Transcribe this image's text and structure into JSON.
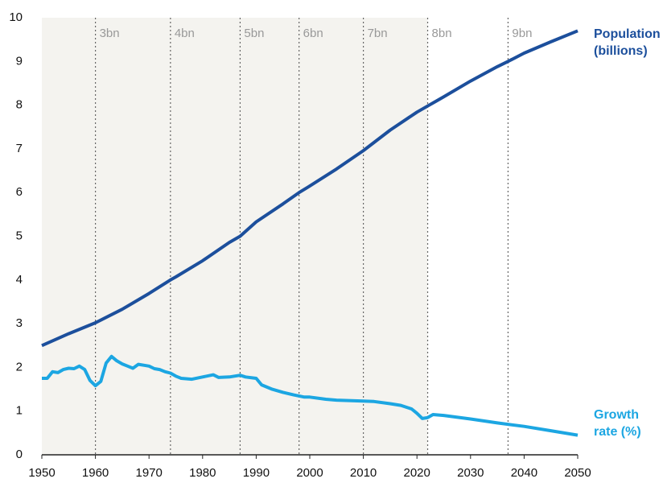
{
  "chart_data": {
    "type": "line",
    "xlim": [
      1950,
      2050
    ],
    "xticks": [
      1950,
      1960,
      1970,
      1980,
      1990,
      2000,
      2010,
      2020,
      2030,
      2040,
      2050
    ],
    "ylim": [
      0,
      10
    ],
    "yticks": [
      0,
      1,
      2,
      3,
      4,
      5,
      6,
      7,
      8,
      9,
      10
    ],
    "milestones": [
      {
        "x": 1960,
        "label": "3bn"
      },
      {
        "x": 1974,
        "label": "4bn"
      },
      {
        "x": 1987,
        "label": "5bn"
      },
      {
        "x": 1998,
        "label": "6bn"
      },
      {
        "x": 2010,
        "label": "7bn"
      },
      {
        "x": 2022,
        "label": "8bn"
      },
      {
        "x": 2037,
        "label": "9bn"
      }
    ],
    "series": [
      {
        "name": "Population (billions)",
        "color": "#1c4f9c",
        "x": [
          1950,
          1955,
          1960,
          1965,
          1970,
          1974,
          1975,
          1980,
          1985,
          1987,
          1990,
          1995,
          1998,
          2000,
          2005,
          2010,
          2015,
          2020,
          2022,
          2025,
          2030,
          2035,
          2037,
          2040,
          2045,
          2050
        ],
        "values": [
          2.5,
          2.77,
          3.02,
          3.33,
          3.69,
          4.0,
          4.07,
          4.44,
          4.86,
          5.0,
          5.33,
          5.74,
          6.0,
          6.15,
          6.54,
          6.96,
          7.43,
          7.84,
          7.98,
          8.19,
          8.55,
          8.88,
          9.0,
          9.19,
          9.45,
          9.7
        ]
      },
      {
        "name": "Growth rate (%)",
        "color": "#1ca6e2",
        "x": [
          1950,
          1951,
          1952,
          1953,
          1954,
          1955,
          1956,
          1957,
          1958,
          1959,
          1960,
          1961,
          1962,
          1963,
          1964,
          1965,
          1966,
          1967,
          1968,
          1969,
          1970,
          1971,
          1972,
          1973,
          1974,
          1975,
          1976,
          1978,
          1980,
          1982,
          1983,
          1985,
          1987,
          1988,
          1990,
          1991,
          1993,
          1995,
          1997,
          1999,
          2000,
          2003,
          2005,
          2010,
          2012,
          2015,
          2017,
          2019,
          2020,
          2021,
          2022,
          2023,
          2025,
          2030,
          2035,
          2040,
          2045,
          2050
        ],
        "values": [
          1.75,
          1.75,
          1.9,
          1.88,
          1.95,
          1.98,
          1.97,
          2.03,
          1.95,
          1.7,
          1.58,
          1.68,
          2.1,
          2.25,
          2.15,
          2.08,
          2.03,
          1.98,
          2.07,
          2.05,
          2.03,
          1.97,
          1.95,
          1.9,
          1.87,
          1.8,
          1.75,
          1.73,
          1.78,
          1.83,
          1.77,
          1.78,
          1.82,
          1.78,
          1.75,
          1.6,
          1.5,
          1.43,
          1.37,
          1.32,
          1.32,
          1.27,
          1.25,
          1.23,
          1.22,
          1.17,
          1.13,
          1.05,
          0.95,
          0.83,
          0.85,
          0.92,
          0.9,
          0.82,
          0.73,
          0.65,
          0.55,
          0.45
        ]
      }
    ]
  }
}
